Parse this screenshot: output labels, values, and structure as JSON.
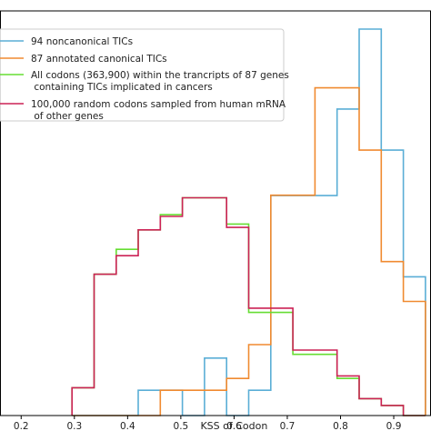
{
  "chart_data": {
    "type": "line",
    "title": "",
    "xlabel": "KSS of Codon",
    "ylabel": "",
    "xlim": [
      0.15,
      0.97
    ],
    "ylim": [
      0,
      1
    ],
    "grid": false,
    "legend_position": "top-left",
    "xticks": [
      0.2,
      0.3,
      0.4,
      0.5,
      0.6,
      0.7,
      0.8,
      0.9
    ],
    "xtick_labels": [
      "0.2",
      "0.3",
      "0.4",
      "0.5",
      "0.6",
      "0.7",
      "0.8",
      "0.9"
    ],
    "bin_edges": [
      0.2955,
      0.337,
      0.3785,
      0.42,
      0.4615,
      0.503,
      0.5445,
      0.586,
      0.6275,
      0.669,
      0.7105,
      0.752,
      0.7935,
      0.835,
      0.8765,
      0.918,
      0.9595
    ],
    "series": [
      {
        "name": "94 noncanonical TICs",
        "color": "#5aaed6",
        "values": [
          0,
          0,
          0,
          0.0655,
          0.0655,
          0,
          0.1486,
          0,
          0.0655,
          0.5691,
          0.5691,
          0.5691,
          0.7932,
          1.0,
          0.6869,
          0.3591
        ]
      },
      {
        "name": "87 annotated canonical TICs",
        "color": "#f08a30",
        "values": [
          0,
          0,
          0,
          0,
          0.0655,
          0.0655,
          0.0655,
          0.0961,
          0.1835,
          0.5701,
          0.5701,
          0.8479,
          0.8479,
          0.6869,
          0.3984,
          0.2952
        ]
      },
      {
        "name": "All codons (363,900) within the trancripts of 87 genes\n containing TICs implicated in cancers",
        "color": "#66dd33",
        "values": [
          0.0721,
          0.3657,
          0.4301,
          0.4804,
          0.5198,
          0.5635,
          0.5635,
          0.4956,
          0.2669,
          0.2669,
          0.1584,
          0.1584,
          0.0961,
          0.0437,
          0.0262,
          0
        ]
      },
      {
        "name": "100,000 random codons sampled from human mRNA\n of other genes",
        "color": "#cc2255",
        "values": [
          0.0721,
          0.3657,
          0.4136,
          0.4804,
          0.5154,
          0.5636,
          0.5636,
          0.4869,
          0.2778,
          0.2778,
          0.1693,
          0.1693,
          0.1026,
          0.0437,
          0.0262,
          0
        ]
      }
    ]
  }
}
